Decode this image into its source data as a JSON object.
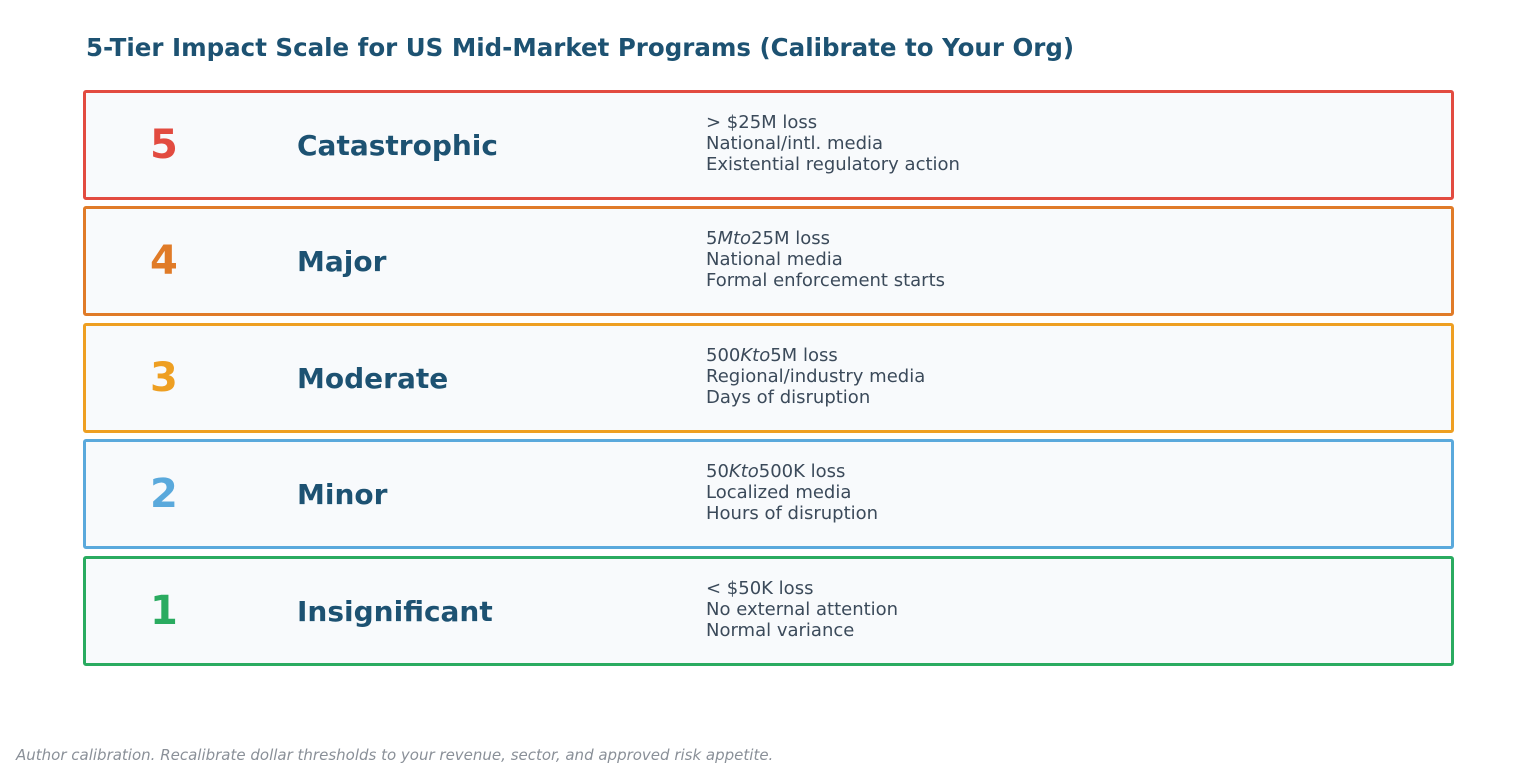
{
  "title": "5-Tier Impact Scale for US Mid-Market Programs (Calibrate to Your Org)",
  "tiers": [
    {
      "number": "5",
      "label": "Catastrophic",
      "color": "#e24b40",
      "lines": [
        "> $25M loss",
        "National/intl. media",
        "Existential regulatory action"
      ]
    },
    {
      "number": "4",
      "label": "Major",
      "color": "#e07b28",
      "lines": [
        "National media",
        "Formal enforcement starts"
      ],
      "first_line_parts": [
        "5",
        "Mto",
        "25M loss"
      ]
    },
    {
      "number": "3",
      "label": "Moderate",
      "color": "#ee9f22",
      "lines": [
        "Regional/industry media",
        "Days of disruption"
      ],
      "first_line_parts": [
        "500",
        "Kto",
        "5M loss"
      ]
    },
    {
      "number": "2",
      "label": "Minor",
      "color": "#5aa9dc",
      "lines": [
        "Localized media",
        "Hours of disruption"
      ],
      "first_line_parts": [
        "50",
        "Kto",
        "500K loss"
      ]
    },
    {
      "number": "1",
      "label": "Insignificant",
      "color": "#2aab60",
      "lines": [
        "< $50K loss",
        "No external attention",
        "Normal variance"
      ]
    }
  ],
  "footnote": "Author calibration. Recalibrate dollar thresholds to your revenue, sector, and approved risk appetite."
}
